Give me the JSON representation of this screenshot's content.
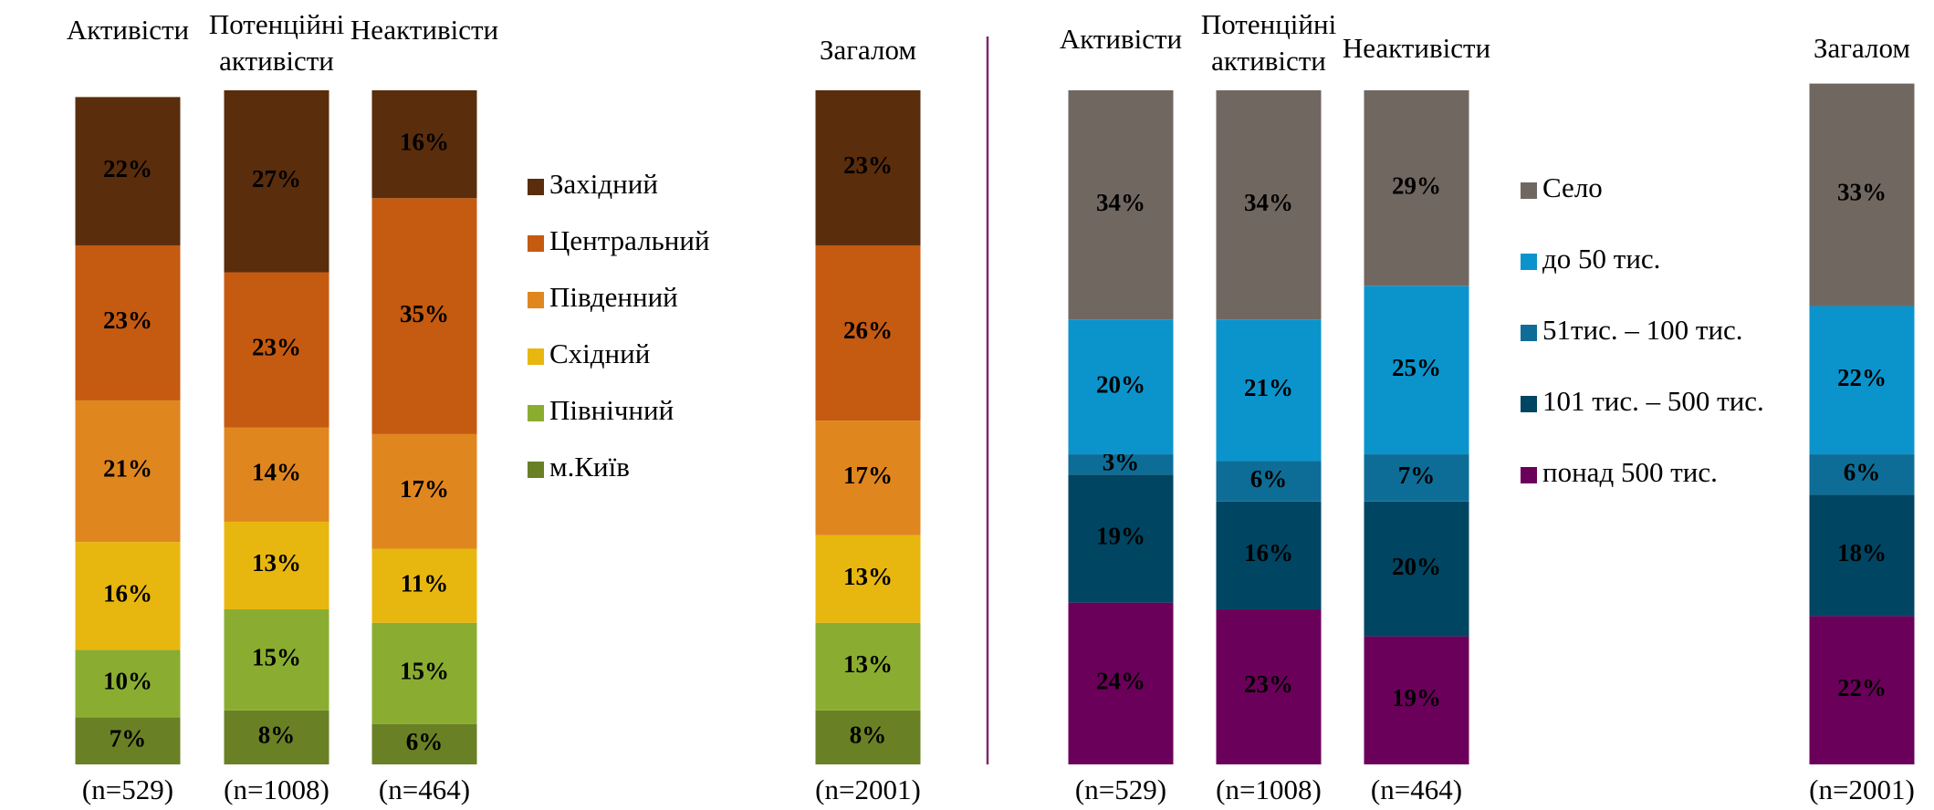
{
  "chart_data": [
    {
      "type": "bar",
      "stacked": true,
      "categories": [
        "Активісти",
        "Потенційні\nактивісти",
        "Неактивісти",
        "Загалом"
      ],
      "sample_sizes": [
        "(n=529)",
        "(n=1008)",
        "(n=464)",
        "(n=2001)"
      ],
      "ylim": [
        0,
        100
      ],
      "series": [
        {
          "name": "м.Київ",
          "color": "#6a8025",
          "label_color": "#000000",
          "values": [
            7,
            8,
            6,
            8
          ],
          "value_labels": [
            "7%",
            "8%",
            "6%",
            "8%"
          ]
        },
        {
          "name": "Північний",
          "color": "#8aad31",
          "label_color": "#000000",
          "values": [
            10,
            15,
            15,
            13
          ],
          "value_labels": [
            "10%",
            "15%",
            "15%",
            "13%"
          ]
        },
        {
          "name": "Східний",
          "color": "#e8b70f",
          "label_color": "#000000",
          "values": [
            16,
            13,
            11,
            13
          ],
          "value_labels": [
            "16%",
            "13%",
            "11%",
            "13%"
          ]
        },
        {
          "name": "Південний",
          "color": "#e0861f",
          "label_color": "#000000",
          "values": [
            21,
            14,
            17,
            17
          ],
          "value_labels": [
            "21%",
            "14%",
            "17%",
            "17%"
          ]
        },
        {
          "name": "Центральний",
          "color": "#c55a11",
          "label_color": "#ffffff",
          "values": [
            23,
            23,
            35,
            26
          ],
          "value_labels": [
            "23%",
            "23%",
            "35%",
            "26%"
          ]
        },
        {
          "name": "Західний",
          "color": "#5a2d0c",
          "label_color": "#ffffff",
          "values": [
            22,
            27,
            16,
            23
          ],
          "value_labels": [
            "22%",
            "27%",
            "16%",
            "23%"
          ]
        }
      ]
    },
    {
      "type": "bar",
      "stacked": true,
      "categories": [
        "Активісти",
        "Потенційні\nактивісти",
        "Неактивісти",
        "Загалом"
      ],
      "sample_sizes": [
        "(n=529)",
        "(n=1008)",
        "(n=464)",
        "(n=2001)"
      ],
      "ylim": [
        0,
        100
      ],
      "series": [
        {
          "name": "понад 500 тис.",
          "color": "#6b005a",
          "label_color": "#ffffff",
          "values": [
            24,
            23,
            19,
            22
          ],
          "value_labels": [
            "24%",
            "23%",
            "19%",
            "22%"
          ]
        },
        {
          "name": "101 тис. – 500 тис.",
          "color": "#004561",
          "label_color": "#ffffff",
          "values": [
            19,
            16,
            20,
            18
          ],
          "value_labels": [
            "19%",
            "16%",
            "20%",
            "18%"
          ]
        },
        {
          "name": "51тис. – 100 тис.",
          "color": "#0e6d96",
          "label_color": "#ffffff",
          "values": [
            3,
            6,
            7,
            6
          ],
          "value_labels": [
            "3%",
            "6%",
            "7%",
            "6%"
          ]
        },
        {
          "name": "до 50 тис.",
          "color": "#0b94cc",
          "label_color": "#000000",
          "values": [
            20,
            21,
            25,
            22
          ],
          "value_labels": [
            "20%",
            "21%",
            "25%",
            "22%"
          ]
        },
        {
          "name": "Село",
          "color": "#716761",
          "label_color": "#000000",
          "values": [
            34,
            34,
            29,
            33
          ],
          "value_labels": [
            "34%",
            "34%",
            "29%",
            "33%"
          ]
        }
      ]
    }
  ]
}
